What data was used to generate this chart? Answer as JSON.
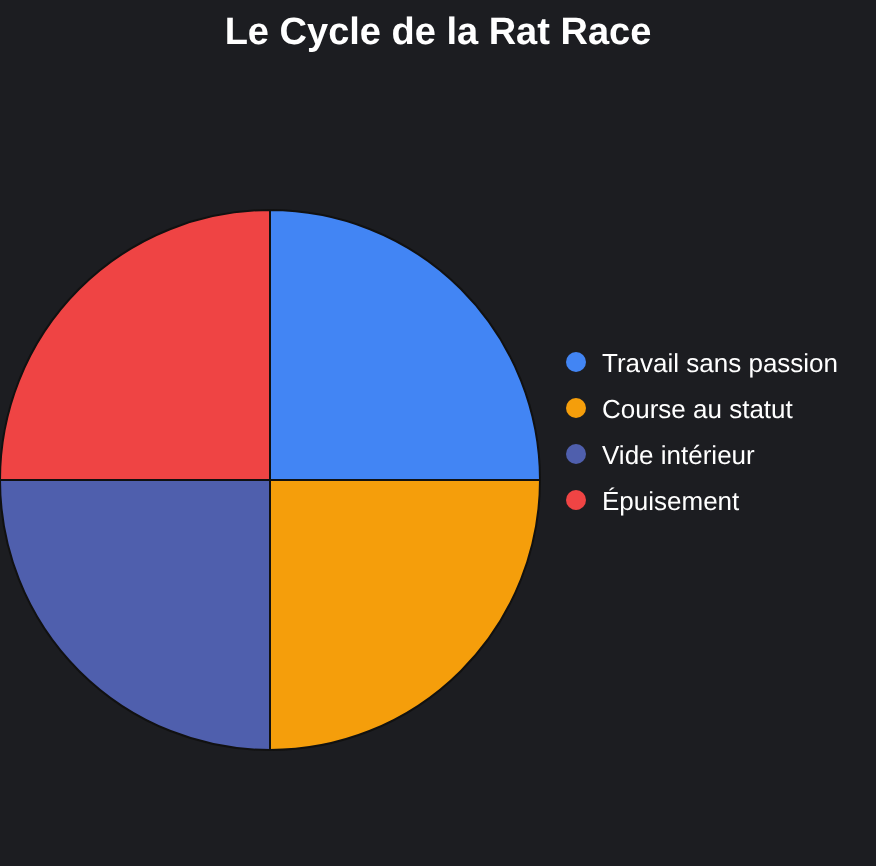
{
  "chart_data": {
    "type": "pie",
    "title": "Le Cycle de la Rat Race",
    "categories": [
      "Travail sans passion",
      "Course au statut",
      "Vide intérieur",
      "Épuisement"
    ],
    "values": [
      25,
      25,
      25,
      25
    ],
    "colors": [
      "#4285f4",
      "#f59e0b",
      "#4f5fad",
      "#ef4444"
    ],
    "legend": "right"
  }
}
